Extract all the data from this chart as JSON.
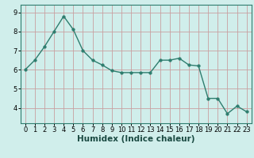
{
  "x": [
    0,
    1,
    2,
    3,
    4,
    5,
    6,
    7,
    8,
    9,
    10,
    11,
    12,
    13,
    14,
    15,
    16,
    17,
    18,
    19,
    20,
    21,
    22,
    23
  ],
  "y": [
    6.0,
    6.5,
    7.2,
    8.0,
    8.8,
    8.1,
    7.0,
    6.5,
    6.25,
    5.95,
    5.85,
    5.85,
    5.85,
    5.85,
    6.5,
    6.5,
    6.6,
    6.25,
    6.2,
    4.5,
    4.5,
    3.7,
    4.1,
    3.8
  ],
  "line_color": "#2e7d6e",
  "marker_color": "#2e7d6e",
  "bg_color": "#d0eeeb",
  "grid_color_v": "#c8a0a0",
  "grid_color_h": "#c8a0a0",
  "xlabel": "Humidex (Indice chaleur)",
  "xlim": [
    -0.5,
    23.5
  ],
  "ylim": [
    3.2,
    9.4
  ],
  "yticks": [
    4,
    5,
    6,
    7,
    8,
    9
  ],
  "xticks": [
    0,
    1,
    2,
    3,
    4,
    5,
    6,
    7,
    8,
    9,
    10,
    11,
    12,
    13,
    14,
    15,
    16,
    17,
    18,
    19,
    20,
    21,
    22,
    23
  ],
  "xlabel_fontsize": 7.5,
  "tick_fontsize": 6.0,
  "linewidth": 1.0,
  "markersize": 2.5,
  "spine_color": "#2e7d6e"
}
